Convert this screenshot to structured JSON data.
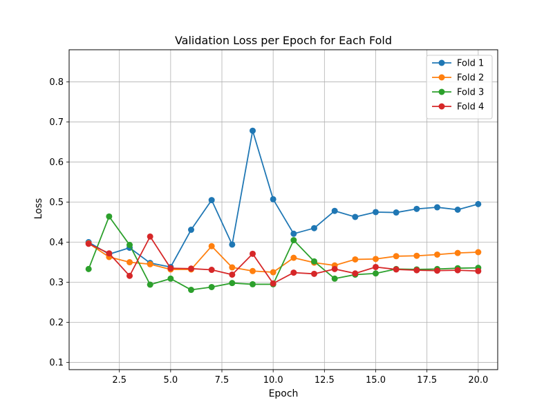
{
  "chart_data": {
    "type": "line",
    "title": "Validation Loss per Epoch for Each Fold",
    "xlabel": "Epoch",
    "ylabel": "Loss",
    "xlim": [
      0.05,
      20.95
    ],
    "ylim": [
      0.082,
      0.88
    ],
    "xticks": [
      2.5,
      5.0,
      7.5,
      10.0,
      12.5,
      15.0,
      17.5,
      20.0
    ],
    "xtick_labels": [
      "2.5",
      "5.0",
      "7.5",
      "10.0",
      "12.5",
      "15.0",
      "17.5",
      "20.0"
    ],
    "yticks": [
      0.1,
      0.2,
      0.3,
      0.4,
      0.5,
      0.6,
      0.7,
      0.8
    ],
    "ytick_labels": [
      "0.1",
      "0.2",
      "0.3",
      "0.4",
      "0.5",
      "0.6",
      "0.7",
      "0.8"
    ],
    "grid": true,
    "legend_position": "top-right",
    "x": [
      1,
      2,
      3,
      4,
      5,
      6,
      7,
      8,
      9,
      10,
      11,
      12,
      13,
      14,
      15,
      16,
      17,
      18,
      19,
      20
    ],
    "series": [
      {
        "name": "Fold 1",
        "color": "#1f77b4",
        "values": [
          0.4,
          0.37,
          0.386,
          0.348,
          0.338,
          0.431,
          0.505,
          0.394,
          0.678,
          0.507,
          0.421,
          0.435,
          0.478,
          0.463,
          0.475,
          0.474,
          0.483,
          0.487,
          0.481,
          0.495
        ]
      },
      {
        "name": "Fold 2",
        "color": "#ff7f0e",
        "values": [
          0.397,
          0.363,
          0.35,
          0.345,
          0.332,
          0.332,
          0.39,
          0.337,
          0.328,
          0.325,
          0.361,
          0.349,
          0.342,
          0.357,
          0.358,
          0.365,
          0.366,
          0.369,
          0.373,
          0.375
        ]
      },
      {
        "name": "Fold 3",
        "color": "#2ca02c",
        "values": [
          0.333,
          0.464,
          0.393,
          0.294,
          0.309,
          0.281,
          0.288,
          0.298,
          0.295,
          0.295,
          0.405,
          0.352,
          0.309,
          0.319,
          0.322,
          0.333,
          0.332,
          0.333,
          0.335,
          0.336
        ]
      },
      {
        "name": "Fold 4",
        "color": "#d62728",
        "values": [
          0.396,
          0.372,
          0.316,
          0.414,
          0.335,
          0.334,
          0.331,
          0.319,
          0.371,
          0.297,
          0.324,
          0.321,
          0.333,
          0.322,
          0.338,
          0.332,
          0.33,
          0.329,
          0.33,
          0.328
        ]
      }
    ]
  }
}
